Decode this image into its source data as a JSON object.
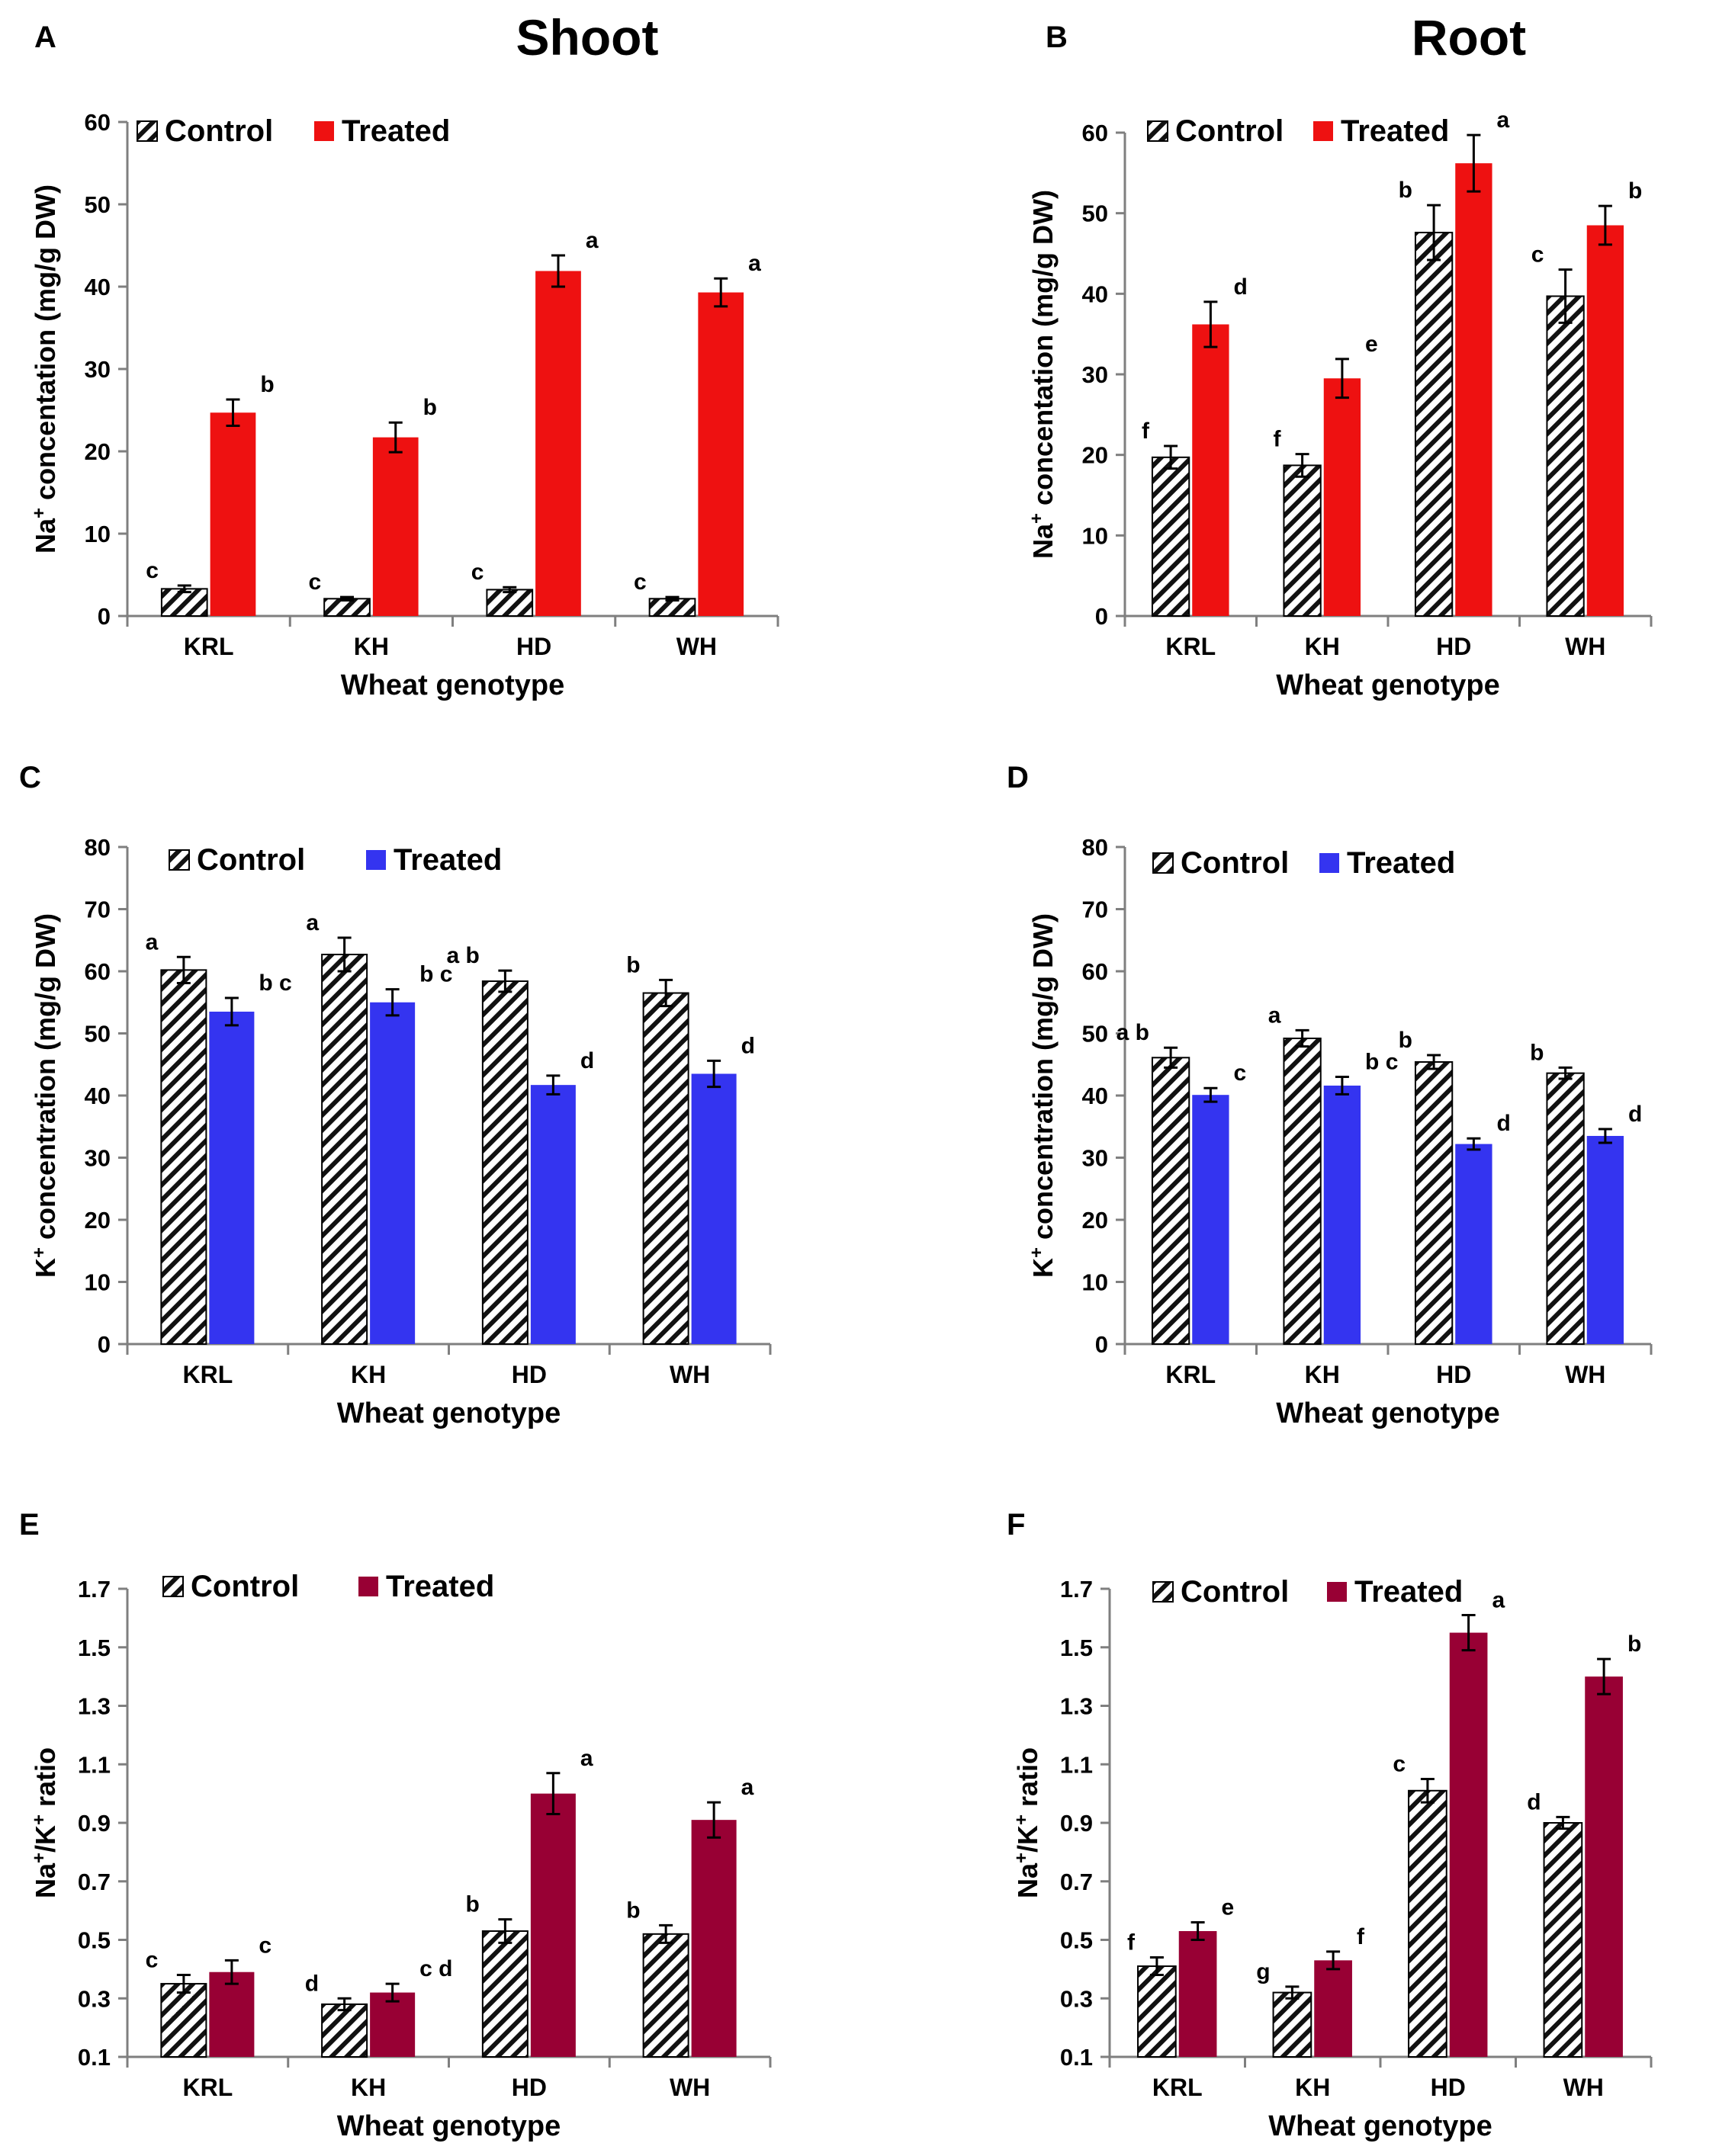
{
  "figure": {
    "column_titles": {
      "shoot": "Shoot",
      "root": "Root"
    },
    "colors": {
      "red": "#ee1111",
      "blue": "#3434f0",
      "maroon": "#980034",
      "axis": "#7f7f7f",
      "text": "#000000"
    }
  },
  "chart_data": [
    {
      "panel": "A",
      "type": "bar",
      "title": "",
      "xlabel": "Wheat genotype",
      "ylabel": "Na+ concentation (mg/g DW)",
      "ylabel_parts": {
        "pre": "Na",
        "sup": "+",
        "post": " concentation (mg/g DW)"
      },
      "categories": [
        "KRL",
        "KH",
        "HD",
        "WH"
      ],
      "ylim": [
        0,
        60
      ],
      "yticks": [
        "0",
        "10",
        "20",
        "30",
        "40",
        "50",
        "60"
      ],
      "legend": "top-left",
      "series": [
        {
          "name": "Control",
          "fill": "hatch",
          "values": [
            3.3,
            2.1,
            3.2,
            2.1
          ],
          "errors": [
            0.4,
            0.2,
            0.3,
            0.2
          ],
          "letters": [
            "c",
            "c",
            "c",
            "c"
          ]
        },
        {
          "name": "Treated",
          "fill": "#ee1111",
          "values": [
            24.7,
            21.7,
            41.9,
            39.3
          ],
          "errors": [
            1.6,
            1.8,
            1.9,
            1.7
          ],
          "letters": [
            "b",
            "b",
            "a",
            "a"
          ]
        }
      ]
    },
    {
      "panel": "B",
      "type": "bar",
      "title": "",
      "xlabel": "Wheat genotype",
      "ylabel": "Na+ concentation (mg/g DW)",
      "ylabel_parts": {
        "pre": "Na",
        "sup": "+",
        "post": " concentation (mg/g DW)"
      },
      "categories": [
        "KRL",
        "KH",
        "HD",
        "WH"
      ],
      "ylim": [
        0,
        60
      ],
      "yticks": [
        "0",
        "10",
        "20",
        "30",
        "40",
        "50",
        "60"
      ],
      "legend": "top-left",
      "series": [
        {
          "name": "Control",
          "fill": "hatch",
          "values": [
            19.7,
            18.7,
            47.6,
            39.7
          ],
          "errors": [
            1.4,
            1.4,
            3.4,
            3.3
          ],
          "letters": [
            "f",
            "f",
            "b",
            "c"
          ]
        },
        {
          "name": "Treated",
          "fill": "#ee1111",
          "values": [
            36.2,
            29.5,
            56.2,
            48.5
          ],
          "errors": [
            2.8,
            2.4,
            3.5,
            2.4
          ],
          "letters": [
            "d",
            "e",
            "a",
            "b"
          ]
        }
      ]
    },
    {
      "panel": "C",
      "type": "bar",
      "title": "",
      "xlabel": "Wheat genotype",
      "ylabel": "K+ concentration (mg/g DW)",
      "ylabel_parts": {
        "pre": "K",
        "sup": "+",
        "post": " concentration (mg/g DW)"
      },
      "categories": [
        "KRL",
        "KH",
        "HD",
        "WH"
      ],
      "ylim": [
        0,
        80
      ],
      "yticks": [
        "0",
        "10",
        "20",
        "30",
        "40",
        "50",
        "60",
        "70",
        "80"
      ],
      "legend": "top-left",
      "series": [
        {
          "name": "Control",
          "fill": "hatch",
          "values": [
            60.2,
            62.7,
            58.4,
            56.5
          ],
          "errors": [
            2.1,
            2.7,
            1.7,
            2.1
          ],
          "letters": [
            "a",
            "a",
            "a b",
            "b"
          ]
        },
        {
          "name": "Treated",
          "fill": "#3434f0",
          "values": [
            53.5,
            55.0,
            41.7,
            43.5
          ],
          "errors": [
            2.2,
            2.1,
            1.5,
            2.1
          ],
          "letters": [
            "b c",
            "b c",
            "d",
            "d"
          ]
        }
      ]
    },
    {
      "panel": "D",
      "type": "bar",
      "title": "",
      "xlabel": "Wheat genotype",
      "ylabel": "K+ concentration (mg/g DW)",
      "ylabel_parts": {
        "pre": "K",
        "sup": "+",
        "post": " concentration (mg/g DW)"
      },
      "categories": [
        "KRL",
        "KH",
        "HD",
        "WH"
      ],
      "ylim": [
        0,
        80
      ],
      "yticks": [
        "0",
        "10",
        "20",
        "30",
        "40",
        "50",
        "60",
        "70",
        "80"
      ],
      "legend": "top-left",
      "series": [
        {
          "name": "Control",
          "fill": "hatch",
          "values": [
            46.1,
            49.2,
            45.4,
            43.6
          ],
          "errors": [
            1.6,
            1.3,
            1.1,
            0.9
          ],
          "letters": [
            "a b",
            "a",
            "b",
            "b"
          ]
        },
        {
          "name": "Treated",
          "fill": "#3434f0",
          "values": [
            40.1,
            41.6,
            32.2,
            33.5
          ],
          "errors": [
            1.1,
            1.4,
            0.9,
            1.1
          ],
          "letters": [
            "c",
            "b c",
            "d",
            "d"
          ]
        }
      ]
    },
    {
      "panel": "E",
      "type": "bar",
      "title": "",
      "xlabel": "Wheat genotype",
      "ylabel": "Na+/K+ ratio",
      "ylabel_parts": {
        "pre": "Na",
        "sup": "+",
        "mid": "/K",
        "sup2": "+",
        "post": " ratio"
      },
      "categories": [
        "KRL",
        "KH",
        "HD",
        "WH"
      ],
      "ylim": [
        0.1,
        1.7
      ],
      "yticks": [
        "0.1",
        "0.3",
        "0.5",
        "0.7",
        "0.9",
        "1.1",
        "1.3",
        "1.5",
        "1.7"
      ],
      "legend": "top-left",
      "series": [
        {
          "name": "Control",
          "fill": "hatch",
          "values": [
            0.35,
            0.28,
            0.53,
            0.52
          ],
          "errors": [
            0.03,
            0.02,
            0.04,
            0.03
          ],
          "letters": [
            "c",
            "d",
            "b",
            "b"
          ]
        },
        {
          "name": "Treated",
          "fill": "#980034",
          "values": [
            0.39,
            0.32,
            1.0,
            0.91
          ],
          "errors": [
            0.04,
            0.03,
            0.07,
            0.06
          ],
          "letters": [
            "c",
            "c d",
            "a",
            "a"
          ]
        }
      ]
    },
    {
      "panel": "F",
      "type": "bar",
      "title": "",
      "xlabel": "Wheat genotype",
      "ylabel": "Na+/K+ ratio",
      "ylabel_parts": {
        "pre": "Na",
        "sup": "+",
        "mid": "/K",
        "sup2": "+",
        "post": " ratio"
      },
      "categories": [
        "KRL",
        "KH",
        "HD",
        "WH"
      ],
      "ylim": [
        0.1,
        1.7
      ],
      "yticks": [
        "0.1",
        "0.3",
        "0.5",
        "0.7",
        "0.9",
        "1.1",
        "1.3",
        "1.5",
        "1.7"
      ],
      "legend": "top-left",
      "series": [
        {
          "name": "Control",
          "fill": "hatch",
          "values": [
            0.41,
            0.32,
            1.01,
            0.9
          ],
          "errors": [
            0.03,
            0.02,
            0.04,
            0.02
          ],
          "letters": [
            "f",
            "g",
            "c",
            "d"
          ]
        },
        {
          "name": "Treated",
          "fill": "#980034",
          "values": [
            0.53,
            0.43,
            1.55,
            1.4
          ],
          "errors": [
            0.03,
            0.03,
            0.06,
            0.06
          ],
          "letters": [
            "e",
            "f",
            "a",
            "b"
          ]
        }
      ]
    }
  ]
}
